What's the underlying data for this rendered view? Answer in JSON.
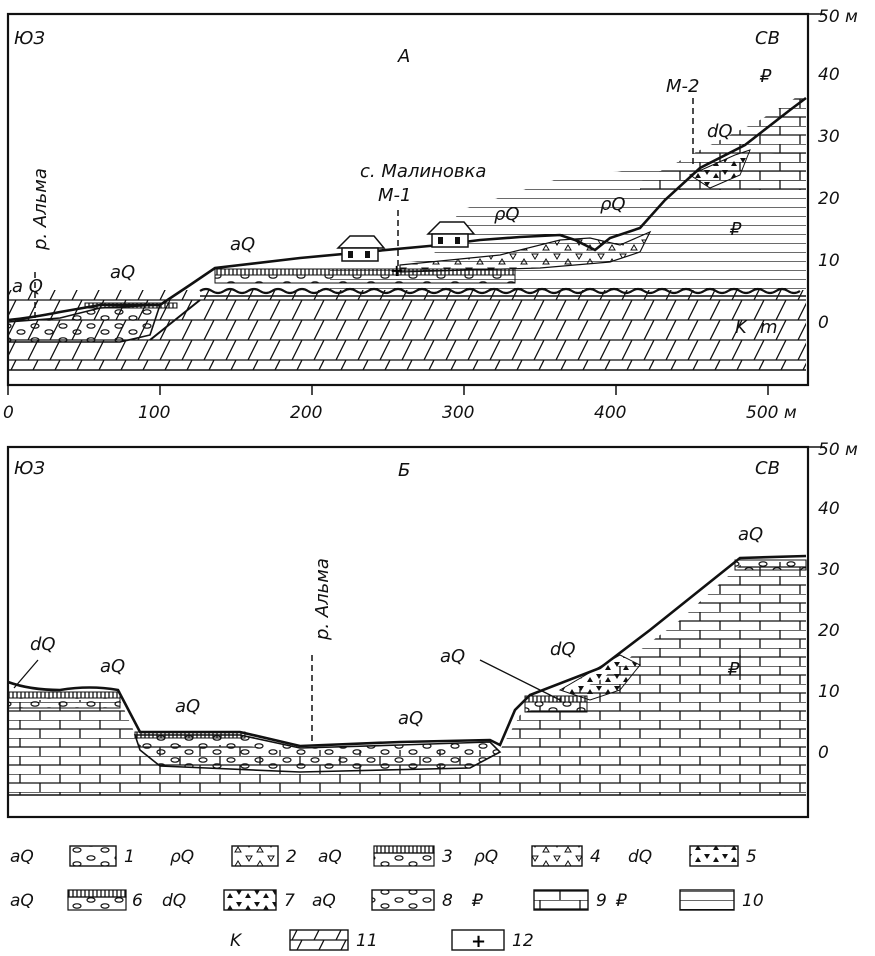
{
  "section_a": {
    "letter": "А",
    "sw": "ЮЗ",
    "ne": "СВ",
    "river": "р. Альма",
    "village": "с. Малиновка",
    "well1": "М-1",
    "well2": "М-2",
    "labels": {
      "aq4_2": "a Q",
      "aq4_1": "aQ",
      "aq3_2": "aQ",
      "pq3_3": "ρQ",
      "pq4_2": "ρQ",
      "dq3_1": "dQ",
      "p2_2s": "₽",
      "p2_1v": "₽",
      "k2m": "K",
      "k2m_tail": "m"
    },
    "y_ticks": [
      "50 м",
      "40",
      "30",
      "20",
      "10",
      "0"
    ],
    "x_ticks": [
      "0",
      "100",
      "200",
      "300",
      "400",
      "500 м"
    ]
  },
  "section_b": {
    "letter": "Б",
    "sw": "ЮЗ",
    "ne": "СВ",
    "river": "р. Альма",
    "labels": {
      "dq3_3_left": "dQ",
      "aq3_2_left": "aQ",
      "aq4_1": "aQ",
      "aq4_2": "aQ",
      "aq3_2_right": "aQ",
      "dq3_3_right": "dQ",
      "aq2": "aQ",
      "p2_2s": "₽"
    },
    "y_ticks": [
      "50 м",
      "40",
      "30",
      "20",
      "10",
      "0"
    ]
  },
  "legend": [
    {
      "code": "aQ",
      "num": "1"
    },
    {
      "code": "ρQ",
      "num": "2"
    },
    {
      "code": "aQ",
      "num": "3"
    },
    {
      "code": "ρQ",
      "num": "4"
    },
    {
      "code": "dQ",
      "num": "5"
    },
    {
      "code": "aQ",
      "num": "6"
    },
    {
      "code": "dQ",
      "num": "7"
    },
    {
      "code": "aQ",
      "num": "8"
    },
    {
      "code": "₽",
      "num": "9"
    },
    {
      "code": "₽",
      "num": "10"
    },
    {
      "code": "K",
      "num": "11"
    },
    {
      "code": "",
      "num": "12"
    }
  ]
}
